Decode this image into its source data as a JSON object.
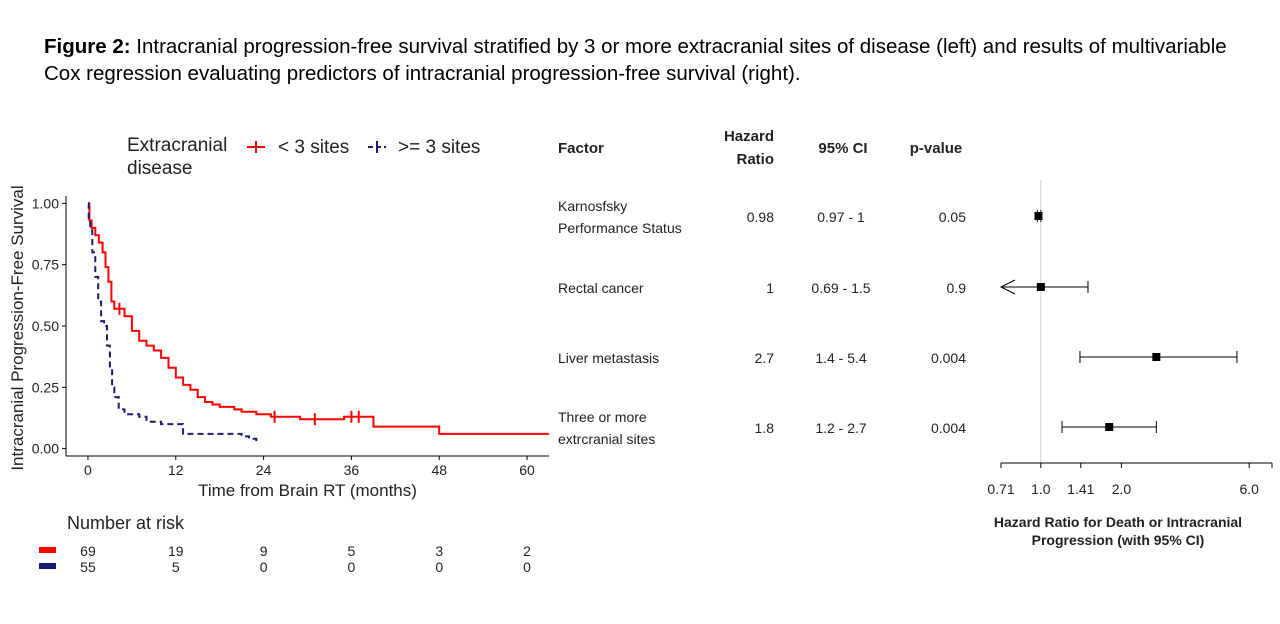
{
  "caption": {
    "label": "Figure 2:",
    "text": " Intracranial progression-free survival stratified by 3 or more extracranial sites of disease (left) and results of multivariable Cox regression evaluating predictors of intracranial progression-free survival (right)."
  },
  "colors": {
    "lt3": "#ff0000",
    "ge3": "#1a1a6e",
    "axis": "#000000",
    "refline": "#cccccc"
  },
  "chart_data": [
    {
      "type": "line",
      "subtype": "kaplan-meier",
      "xlabel": "Time from Brain RT (months)",
      "ylabel": "Intracranial Progression-Free Survival",
      "xlim": [
        -3,
        63
      ],
      "ylim": [
        -0.03,
        1.03
      ],
      "x_ticks": [
        0,
        12,
        24,
        36,
        48,
        60
      ],
      "y_ticks": [
        0.0,
        0.25,
        0.5,
        0.75,
        1.0
      ],
      "y_tick_labels": [
        "0.00",
        "0.25",
        "0.50",
        "0.75",
        "1.00"
      ],
      "grid": false,
      "legend": {
        "title": "Extracranial disease",
        "placement": "top"
      },
      "series": [
        {
          "name": "< 3 sites",
          "line_style": "solid",
          "points": [
            [
              0,
              1.0
            ],
            [
              0.2,
              0.93
            ],
            [
              0.5,
              0.9
            ],
            [
              1,
              0.87
            ],
            [
              1.5,
              0.84
            ],
            [
              2,
              0.8
            ],
            [
              2.4,
              0.74
            ],
            [
              2.8,
              0.68
            ],
            [
              3.2,
              0.6
            ],
            [
              3.6,
              0.57
            ],
            [
              4.2,
              0.57
            ],
            [
              5,
              0.54
            ],
            [
              6,
              0.48
            ],
            [
              7,
              0.44
            ],
            [
              8,
              0.42
            ],
            [
              9,
              0.4
            ],
            [
              10,
              0.37
            ],
            [
              11,
              0.33
            ],
            [
              12,
              0.29
            ],
            [
              13,
              0.26
            ],
            [
              14,
              0.24
            ],
            [
              15,
              0.21
            ],
            [
              16,
              0.19
            ],
            [
              17,
              0.18
            ],
            [
              18,
              0.17
            ],
            [
              20,
              0.16
            ],
            [
              21,
              0.15
            ],
            [
              23,
              0.14
            ],
            [
              25,
              0.13
            ],
            [
              29,
              0.12
            ],
            [
              33,
              0.12
            ],
            [
              35,
              0.13
            ],
            [
              39,
              0.09
            ],
            [
              48,
              0.06
            ],
            [
              63,
              0.06
            ]
          ],
          "censor_x": [
            4.3,
            25.5,
            31,
            36,
            37
          ]
        },
        {
          "name": ">= 3 sites",
          "line_style": "dashed",
          "points": [
            [
              0,
              1.0
            ],
            [
              0.1,
              0.94
            ],
            [
              0.3,
              0.89
            ],
            [
              0.6,
              0.8
            ],
            [
              1,
              0.7
            ],
            [
              1.4,
              0.6
            ],
            [
              1.8,
              0.52
            ],
            [
              2.2,
              0.5
            ],
            [
              2.6,
              0.42
            ],
            [
              3,
              0.32
            ],
            [
              3.3,
              0.25
            ],
            [
              3.6,
              0.21
            ],
            [
              4.2,
              0.16
            ],
            [
              5,
              0.14
            ],
            [
              7,
              0.13
            ],
            [
              8,
              0.11
            ],
            [
              10,
              0.1
            ],
            [
              12.5,
              0.1
            ],
            [
              13,
              0.06
            ],
            [
              20,
              0.06
            ],
            [
              21,
              0.05
            ],
            [
              22,
              0.04
            ],
            [
              23,
              0.03
            ]
          ],
          "censor_x": []
        }
      ],
      "risk_table": {
        "title": "Number at risk",
        "times": [
          0,
          12,
          24,
          36,
          48,
          60
        ],
        "rows": [
          {
            "series": "< 3 sites",
            "values": [
              "69",
              "19",
              "9",
              "5",
              "3",
              "2"
            ]
          },
          {
            "series": ">= 3 sites",
            "values": [
              "55",
              "5",
              "0",
              "0",
              "0",
              "0"
            ]
          }
        ]
      }
    },
    {
      "type": "forest",
      "xlabel": "Hazard Ratio for Death or Intracranial Progression (with 95% CI)",
      "log_scale": true,
      "x_ticks": [
        0.71,
        1.0,
        1.41,
        2.0,
        6.0
      ],
      "x_tick_labels": [
        "0.71",
        "1.0",
        "1.41",
        "2.0",
        "6.0"
      ],
      "xlim": [
        0.71,
        7.3
      ],
      "reference_line": 1.0,
      "headers": {
        "factor": "Factor",
        "hr_line1": "Hazard",
        "hr_line2": "Ratio",
        "ci": "95% CI",
        "p": "p-value"
      },
      "rows": [
        {
          "factor_line1": "Karnosfsky",
          "factor_line2": "Performance Status",
          "hr_text": "0.98",
          "ci_text": "0.97 - 1",
          "p_text": "0.05",
          "hr": 0.98,
          "lo": 0.97,
          "hi": 1.0,
          "arrow_left": false
        },
        {
          "factor_line1": "Rectal cancer",
          "factor_line2": "",
          "hr_text": "1",
          "ci_text": "0.69 - 1.5",
          "p_text": "0.9",
          "hr": 1.0,
          "lo": 0.69,
          "hi": 1.5,
          "arrow_left": true
        },
        {
          "factor_line1": "Liver metastasis",
          "factor_line2": "",
          "hr_text": "2.7",
          "ci_text": "1.4 - 5.4",
          "p_text": "0.004",
          "hr": 2.7,
          "lo": 1.4,
          "hi": 5.4,
          "arrow_left": false
        },
        {
          "factor_line1": "Three or more",
          "factor_line2": "extrcranial sites",
          "hr_text": "1.8",
          "ci_text": "1.2 - 2.7",
          "p_text": "0.004",
          "hr": 1.8,
          "lo": 1.2,
          "hi": 2.7,
          "arrow_left": false
        }
      ]
    }
  ]
}
